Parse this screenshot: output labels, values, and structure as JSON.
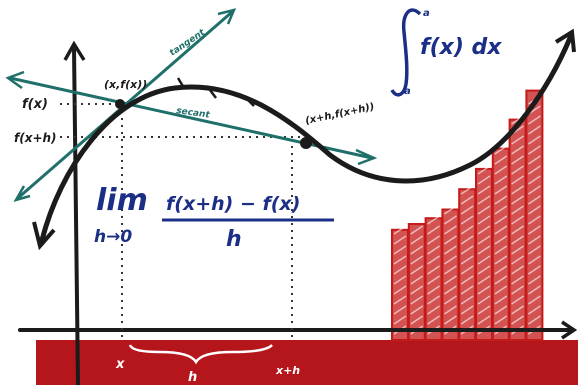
{
  "colors": {
    "ink": "#1b1b1b",
    "teal": "#1f6f6a",
    "navy": "#1c2f86",
    "red": "#c41a1a",
    "band": "#b5161c",
    "dotted": "#333333"
  },
  "labels": {
    "f_x": "f(x)",
    "f_x_plus_h": "f(x+h)",
    "point_x": "(x,f(x))",
    "point_x_plus_h": "(x+h,f(x+h))",
    "tangent": "tangent",
    "secant": "secant",
    "x_tick": "x",
    "xh_tick": "x+h",
    "h_brace": "h"
  },
  "limit": {
    "lim": "lim",
    "sub": "h→0",
    "numerator": "f(x+h) − f(x)",
    "denominator": "h"
  },
  "integral": {
    "upper": "a",
    "lower": "a",
    "body": "f(x) dx"
  },
  "riemann_rects": [
    0.38,
    0.4,
    0.42,
    0.45,
    0.52,
    0.59,
    0.66,
    0.76,
    0.86
  ],
  "icons": [
    "integral-sign-icon",
    "limit-arrow-icon"
  ]
}
